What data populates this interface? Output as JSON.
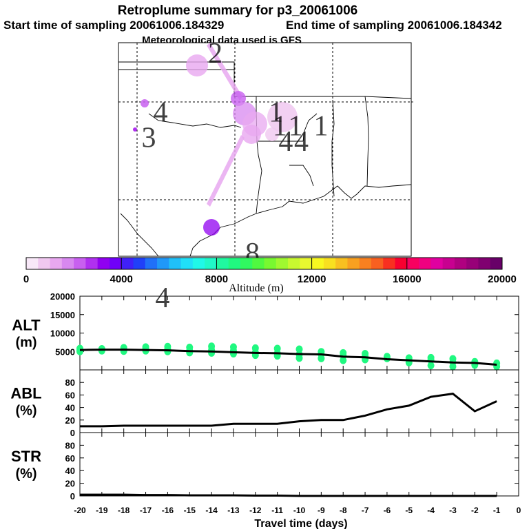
{
  "header": {
    "title": "Retroplume summary for p3_20061006",
    "start_label": "Start time of sampling 20061006.184329",
    "end_label": "End time of sampling 20061006.184342",
    "met_label": "Meteorological data used is GFS"
  },
  "map": {
    "day_markers": [
      {
        "label": "2",
        "lon": -96.0,
        "lat": 37.0
      },
      {
        "label": "1",
        "lon": -92.9,
        "lat": 34.0
      },
      {
        "label": "4",
        "lon": -98.8,
        "lat": 34.0
      },
      {
        "label": "3",
        "lon": -99.4,
        "lat": 32.7
      },
      {
        "label": "1",
        "lon": -92.7,
        "lat": 33.3
      },
      {
        "label": "1",
        "lon": -91.9,
        "lat": 33.3
      },
      {
        "label": "1",
        "lon": -90.6,
        "lat": 33.3
      },
      {
        "label": "4",
        "lon": -92.4,
        "lat": 32.5
      },
      {
        "label": "4",
        "lon": -91.6,
        "lat": 32.5
      },
      {
        "label": "8",
        "lon": -94.1,
        "lat": 26.8
      },
      {
        "label": "4",
        "lon": -98.7,
        "lat": 24.5
      }
    ]
  },
  "colorbar": {
    "tick_labels": [
      "0",
      "4000",
      "8000",
      "12000",
      "16000",
      "20000"
    ],
    "label": "Altitude (m)",
    "colors": [
      "#f8e8f8",
      "#f0c8f0",
      "#e8a8f0",
      "#d888f0",
      "#c860f0",
      "#b030f0",
      "#9000f0",
      "#7000f8",
      "#4020f8",
      "#2040f8",
      "#2070f8",
      "#2098f8",
      "#20c0f8",
      "#20e0f8",
      "#20f8e8",
      "#20f8c8",
      "#20f8a0",
      "#20f880",
      "#30f860",
      "#50f840",
      "#78f830",
      "#a0f830",
      "#c8f830",
      "#e8f830",
      "#f8f820",
      "#f8e020",
      "#f8c020",
      "#f8a020",
      "#f88020",
      "#f86020",
      "#f83020",
      "#f80030",
      "#f80060",
      "#f00080",
      "#e000a0",
      "#c80090",
      "#b00080",
      "#980078",
      "#800070",
      "#680068"
    ]
  },
  "chart_data": [
    {
      "type": "scatter",
      "name": "ALT",
      "title": "ALT",
      "ylabel": "(m)",
      "ylim": [
        0,
        20000
      ],
      "yticks": [
        5000,
        10000,
        15000,
        20000
      ],
      "xlim": [
        -20,
        0
      ],
      "line": {
        "x": [
          -20,
          -19,
          -18,
          -17,
          -16,
          -15,
          -14,
          -13,
          -12,
          -11,
          -10,
          -9,
          -8,
          -7,
          -6,
          -5,
          -4,
          -3,
          -2,
          -1
        ],
        "y": [
          5400,
          5500,
          5500,
          5400,
          5300,
          5100,
          5000,
          4800,
          4600,
          4500,
          4300,
          4200,
          3600,
          3400,
          2900,
          2600,
          2300,
          2000,
          1900,
          1400
        ]
      },
      "points": [
        [
          -20,
          5400
        ],
        [
          -20,
          5800
        ],
        [
          -20,
          5000
        ],
        [
          -19,
          5200
        ],
        [
          -19,
          5700
        ],
        [
          -18,
          5500
        ],
        [
          -18,
          6000
        ],
        [
          -18,
          5100
        ],
        [
          -17,
          5700
        ],
        [
          -17,
          6200
        ],
        [
          -17,
          5200
        ],
        [
          -16,
          5600
        ],
        [
          -16,
          6300
        ],
        [
          -16,
          5000
        ],
        [
          -15,
          5200
        ],
        [
          -15,
          6100
        ],
        [
          -15,
          4700
        ],
        [
          -14,
          5400
        ],
        [
          -14,
          6400
        ],
        [
          -14,
          4600
        ],
        [
          -13,
          5200
        ],
        [
          -13,
          6200
        ],
        [
          -13,
          4400
        ],
        [
          -12,
          4700
        ],
        [
          -12,
          5900
        ],
        [
          -12,
          4000
        ],
        [
          -11,
          4500
        ],
        [
          -11,
          5800
        ],
        [
          -11,
          3800
        ],
        [
          -10,
          4200
        ],
        [
          -10,
          5600
        ],
        [
          -10,
          3200
        ],
        [
          -9,
          4200
        ],
        [
          -9,
          4900
        ],
        [
          -9,
          3100
        ],
        [
          -8,
          3900
        ],
        [
          -8,
          4600
        ],
        [
          -8,
          2600
        ],
        [
          -7,
          3700
        ],
        [
          -7,
          4400
        ],
        [
          -7,
          2800
        ],
        [
          -6,
          3600
        ],
        [
          -6,
          3100
        ],
        [
          -5,
          3200
        ],
        [
          -5,
          2700
        ],
        [
          -5,
          2000
        ],
        [
          -4,
          3300
        ],
        [
          -4,
          2700
        ],
        [
          -4,
          1200
        ],
        [
          -3,
          3000
        ],
        [
          -3,
          2100
        ],
        [
          -3,
          900
        ],
        [
          -2,
          2200
        ],
        [
          -2,
          1300
        ],
        [
          -1,
          1800
        ],
        [
          -1,
          900
        ]
      ]
    },
    {
      "type": "line",
      "name": "ABL",
      "title": "ABL",
      "ylabel": "(%)",
      "ylim": [
        0,
        100
      ],
      "yticks": [
        0,
        20,
        40,
        60,
        80
      ],
      "xlim": [
        -20,
        0
      ],
      "x": [
        -20,
        -19,
        -18,
        -17,
        -16,
        -15,
        -14,
        -13,
        -12,
        -11,
        -10,
        -9,
        -8,
        -7,
        -6,
        -5,
        -4,
        -3,
        -2,
        -1
      ],
      "y": [
        10,
        10,
        11,
        11,
        11,
        11,
        11,
        14,
        14,
        14,
        18,
        20,
        20,
        27,
        37,
        43,
        57,
        62,
        34,
        50
      ]
    },
    {
      "type": "line",
      "name": "STR",
      "title": "STR",
      "ylabel": "(%)",
      "ylim": [
        0,
        100
      ],
      "yticks": [
        0,
        20,
        40,
        60,
        80
      ],
      "xlim": [
        -20,
        0
      ],
      "xlabel": "Travel time (days)",
      "xticks": [
        "-20",
        "-19",
        "-18",
        "-17",
        "-16",
        "-15",
        "-14",
        "-13",
        "-12",
        "-11",
        "-10",
        "-9",
        "-8",
        "-7",
        "-6",
        "-5",
        "-4",
        "-3",
        "-2",
        "-1",
        "0"
      ],
      "x": [
        -20,
        -19,
        -18,
        -17,
        -16,
        -15,
        -14,
        -13,
        -12,
        -11,
        -10,
        -9,
        -8,
        -7,
        -6,
        -5,
        -4,
        -3,
        -2,
        -1
      ],
      "y": [
        2,
        2,
        2,
        1.5,
        1.5,
        1,
        1,
        1,
        0.5,
        0.5,
        0,
        0,
        0,
        0,
        0,
        0,
        0,
        0,
        0,
        0
      ]
    }
  ]
}
